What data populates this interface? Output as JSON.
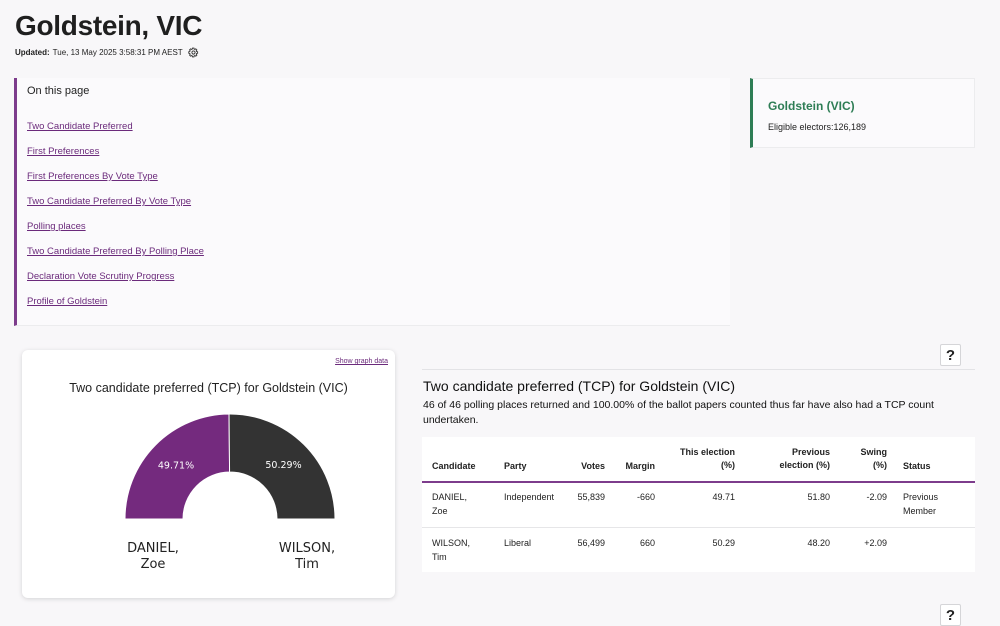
{
  "page": {
    "title": "Goldstein, VIC",
    "updated_label": "Updated:",
    "updated_value": "Tue, 13 May 2025 3:58:31 PM AEST"
  },
  "on_this_page": {
    "heading": "On this page",
    "links": [
      "Two Candidate Preferred",
      "First Preferences",
      "First Preferences By Vote Type",
      "Two Candidate Preferred By Vote Type",
      "Polling places",
      "Two Candidate Preferred By Polling Place",
      "Declaration Vote Scrutiny Progress",
      "Profile of Goldstein"
    ]
  },
  "division_card": {
    "title": "Goldstein (VIC)",
    "eligible_label": "Eligible electors:",
    "eligible_value": "126,189"
  },
  "graph_card": {
    "show_graph_data": "Show graph data",
    "help": "?"
  },
  "chart_data": {
    "type": "pie",
    "title": "Two candidate preferred (TCP) for Goldstein (VIC)",
    "subtype": "half-donut",
    "categories": [
      "DANIEL, Zoe",
      "WILSON, Tim"
    ],
    "label_lines": [
      [
        "DANIEL,",
        "Zoe"
      ],
      [
        "WILSON,",
        "Tim"
      ]
    ],
    "values": [
      49.71,
      50.29
    ],
    "value_labels": [
      "49.71%",
      "50.29%"
    ],
    "colors": [
      "#742a7e",
      "#333333"
    ]
  },
  "tcp_section": {
    "title": "Two candidate preferred (TCP) for Goldstein (VIC)",
    "description": "46 of 46 polling places returned and 100.00% of the ballot papers counted thus far have also had a TCP count undertaken.",
    "help": "?",
    "help_bottom": "?",
    "columns": {
      "candidate": "Candidate",
      "party": "Party",
      "votes": "Votes",
      "margin": "Margin",
      "this_election": [
        "This election",
        "(%)"
      ],
      "previous_election": [
        "Previous",
        "election (%)"
      ],
      "swing": [
        "Swing",
        "(%)"
      ],
      "status": "Status"
    },
    "rows": [
      {
        "candidate": [
          "DANIEL,",
          "Zoe"
        ],
        "party": "Independent",
        "votes": "55,839",
        "margin": "-660",
        "this_election": "49.71",
        "previous_election": "51.80",
        "swing": "-2.09",
        "status": [
          "Previous",
          "Member"
        ]
      },
      {
        "candidate": [
          "WILSON,",
          "Tim"
        ],
        "party": "Liberal",
        "votes": "56,499",
        "margin": "660",
        "this_election": "50.29",
        "previous_election": "48.20",
        "swing": "+2.09",
        "status": [
          "",
          ""
        ]
      }
    ]
  },
  "colors": {
    "accent_purple": "#7d3c8c",
    "accent_green": "#2e7d55",
    "link": "#6b2a7b"
  }
}
